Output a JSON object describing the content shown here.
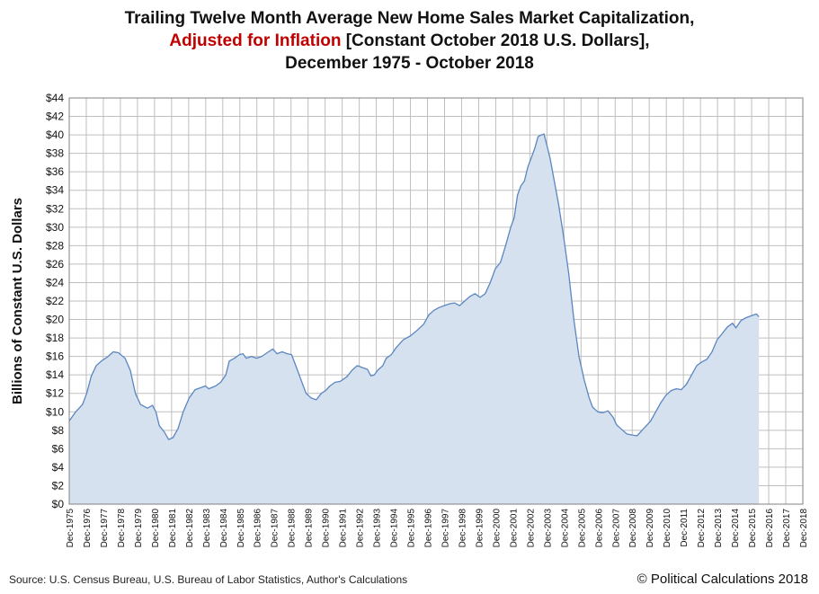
{
  "title": {
    "line1": "Trailing Twelve Month Average New Home Sales Market Capitalization,",
    "line2_red": "Adjusted for Inflation",
    "line2_rest": " [Constant October 2018 U.S. Dollars],",
    "line3": "December 1975 - October 2018"
  },
  "footer": {
    "source": "Source: U.S. Census Bureau, U.S. Bureau of Labor Statistics, Author's Calculations",
    "copyright": "© Political Calculations 2018"
  },
  "colors": {
    "line": "#5b86c0",
    "fill": "#d6e1ef",
    "grid": "#bfbfbf",
    "title_accent": "#c00000"
  },
  "chart_data": {
    "type": "area",
    "ylabel": "Billions of Constant U.S. Dollars",
    "ylim": [
      0,
      44
    ],
    "ytick_step": 2,
    "ytick_prefix": "$",
    "grid": true,
    "x_tick_labels": [
      "Dec-1975",
      "Dec-1976",
      "Dec-1977",
      "Dec-1978",
      "Dec-1979",
      "Dec-1980",
      "Dec-1981",
      "Dec-1982",
      "Dec-1983",
      "Dec-1984",
      "Dec-1985",
      "Dec-1986",
      "Dec-1987",
      "Dec-1988",
      "Dec-1989",
      "Dec-1990",
      "Dec-1991",
      "Dec-1992",
      "Dec-1993",
      "Dec-1994",
      "Dec-1995",
      "Dec-1996",
      "Dec-1997",
      "Dec-1998",
      "Dec-1999",
      "Dec-2000",
      "Dec-2001",
      "Dec-2002",
      "Dec-2003",
      "Dec-2004",
      "Dec-2005",
      "Dec-2006",
      "Dec-2007",
      "Dec-2008",
      "Dec-2009",
      "Dec-2010",
      "Dec-2011",
      "Dec-2012",
      "Dec-2013",
      "Dec-2014",
      "Dec-2015",
      "Dec-2016",
      "Dec-2017",
      "Dec-2018"
    ],
    "series": [
      {
        "values": [
          [
            1975.92,
            9.0
          ],
          [
            1976.3,
            10.0
          ],
          [
            1976.7,
            10.8
          ],
          [
            1976.95,
            12.0
          ],
          [
            1977.2,
            13.8
          ],
          [
            1977.5,
            15.0
          ],
          [
            1977.8,
            15.5
          ],
          [
            1978.2,
            16.0
          ],
          [
            1978.5,
            16.5
          ],
          [
            1978.8,
            16.4
          ],
          [
            1979.2,
            15.8
          ],
          [
            1979.5,
            14.5
          ],
          [
            1979.8,
            12.0
          ],
          [
            1980.1,
            10.8
          ],
          [
            1980.5,
            10.4
          ],
          [
            1980.8,
            10.7
          ],
          [
            1981.0,
            10.0
          ],
          [
            1981.2,
            8.5
          ],
          [
            1981.5,
            7.8
          ],
          [
            1981.75,
            7.0
          ],
          [
            1982.0,
            7.2
          ],
          [
            1982.3,
            8.2
          ],
          [
            1982.6,
            10.0
          ],
          [
            1982.95,
            11.5
          ],
          [
            1983.3,
            12.4
          ],
          [
            1983.6,
            12.6
          ],
          [
            1983.9,
            12.8
          ],
          [
            1984.1,
            12.5
          ],
          [
            1984.5,
            12.8
          ],
          [
            1984.8,
            13.2
          ],
          [
            1985.1,
            14.0
          ],
          [
            1985.3,
            15.5
          ],
          [
            1985.6,
            15.8
          ],
          [
            1985.9,
            16.2
          ],
          [
            1986.1,
            16.3
          ],
          [
            1986.3,
            15.8
          ],
          [
            1986.6,
            16.0
          ],
          [
            1986.9,
            15.8
          ],
          [
            1987.2,
            16.0
          ],
          [
            1987.6,
            16.5
          ],
          [
            1987.85,
            16.8
          ],
          [
            1988.1,
            16.3
          ],
          [
            1988.4,
            16.5
          ],
          [
            1988.7,
            16.3
          ],
          [
            1988.95,
            16.2
          ],
          [
            1989.2,
            15.0
          ],
          [
            1989.5,
            13.5
          ],
          [
            1989.8,
            12.0
          ],
          [
            1990.1,
            11.5
          ],
          [
            1990.4,
            11.3
          ],
          [
            1990.7,
            12.0
          ],
          [
            1990.95,
            12.3
          ],
          [
            1991.2,
            12.8
          ],
          [
            1991.5,
            13.2
          ],
          [
            1991.8,
            13.3
          ],
          [
            1992.2,
            13.8
          ],
          [
            1992.5,
            14.5
          ],
          [
            1992.8,
            15.0
          ],
          [
            1993.1,
            14.8
          ],
          [
            1993.4,
            14.6
          ],
          [
            1993.6,
            13.9
          ],
          [
            1993.8,
            14.0
          ],
          [
            1994.0,
            14.5
          ],
          [
            1994.3,
            15.0
          ],
          [
            1994.5,
            15.8
          ],
          [
            1994.8,
            16.2
          ],
          [
            1995.1,
            17.0
          ],
          [
            1995.5,
            17.8
          ],
          [
            1995.9,
            18.2
          ],
          [
            1996.3,
            18.8
          ],
          [
            1996.7,
            19.5
          ],
          [
            1997.0,
            20.5
          ],
          [
            1997.3,
            21.0
          ],
          [
            1997.6,
            21.3
          ],
          [
            1997.9,
            21.5
          ],
          [
            1998.2,
            21.7
          ],
          [
            1998.5,
            21.8
          ],
          [
            1998.8,
            21.5
          ],
          [
            1999.1,
            22.0
          ],
          [
            1999.4,
            22.5
          ],
          [
            1999.7,
            22.8
          ],
          [
            2000.0,
            22.4
          ],
          [
            2000.3,
            22.8
          ],
          [
            2000.6,
            24.0
          ],
          [
            2000.9,
            25.5
          ],
          [
            2001.2,
            26.2
          ],
          [
            2001.5,
            28.0
          ],
          [
            2001.8,
            30.0
          ],
          [
            2002.0,
            31.0
          ],
          [
            2002.2,
            33.5
          ],
          [
            2002.4,
            34.5
          ],
          [
            2002.6,
            35.0
          ],
          [
            2002.8,
            36.5
          ],
          [
            2003.0,
            37.5
          ],
          [
            2003.2,
            38.5
          ],
          [
            2003.4,
            39.8
          ],
          [
            2003.6,
            40.0
          ],
          [
            2003.75,
            40.1
          ],
          [
            2003.9,
            39.0
          ],
          [
            2004.1,
            37.5
          ],
          [
            2004.3,
            35.5
          ],
          [
            2004.6,
            32.5
          ],
          [
            2004.9,
            29.0
          ],
          [
            2005.2,
            25.0
          ],
          [
            2005.5,
            20.0
          ],
          [
            2005.8,
            16.0
          ],
          [
            2006.1,
            13.5
          ],
          [
            2006.4,
            11.5
          ],
          [
            2006.6,
            10.5
          ],
          [
            2006.9,
            10.0
          ],
          [
            2007.2,
            9.9
          ],
          [
            2007.5,
            10.1
          ],
          [
            2007.8,
            9.4
          ],
          [
            2008.0,
            8.6
          ],
          [
            2008.3,
            8.1
          ],
          [
            2008.6,
            7.6
          ],
          [
            2008.9,
            7.5
          ],
          [
            2009.2,
            7.4
          ],
          [
            2009.5,
            8.0
          ],
          [
            2009.8,
            8.6
          ],
          [
            2010.0,
            9.0
          ],
          [
            2010.3,
            10.0
          ],
          [
            2010.6,
            11.0
          ],
          [
            2010.9,
            11.8
          ],
          [
            2011.2,
            12.3
          ],
          [
            2011.5,
            12.5
          ],
          [
            2011.8,
            12.4
          ],
          [
            2012.1,
            13.0
          ],
          [
            2012.4,
            14.0
          ],
          [
            2012.7,
            15.0
          ],
          [
            2013.0,
            15.4
          ],
          [
            2013.3,
            15.7
          ],
          [
            2013.6,
            16.5
          ],
          [
            2013.9,
            17.8
          ],
          [
            2014.2,
            18.5
          ],
          [
            2014.5,
            19.2
          ],
          [
            2014.8,
            19.6
          ],
          [
            2015.0,
            19.1
          ],
          [
            2015.3,
            19.9
          ],
          [
            2015.6,
            20.2
          ],
          [
            2015.9,
            20.4
          ],
          [
            2016.2,
            20.6
          ],
          [
            2016.35,
            20.3
          ]
        ]
      }
    ]
  }
}
